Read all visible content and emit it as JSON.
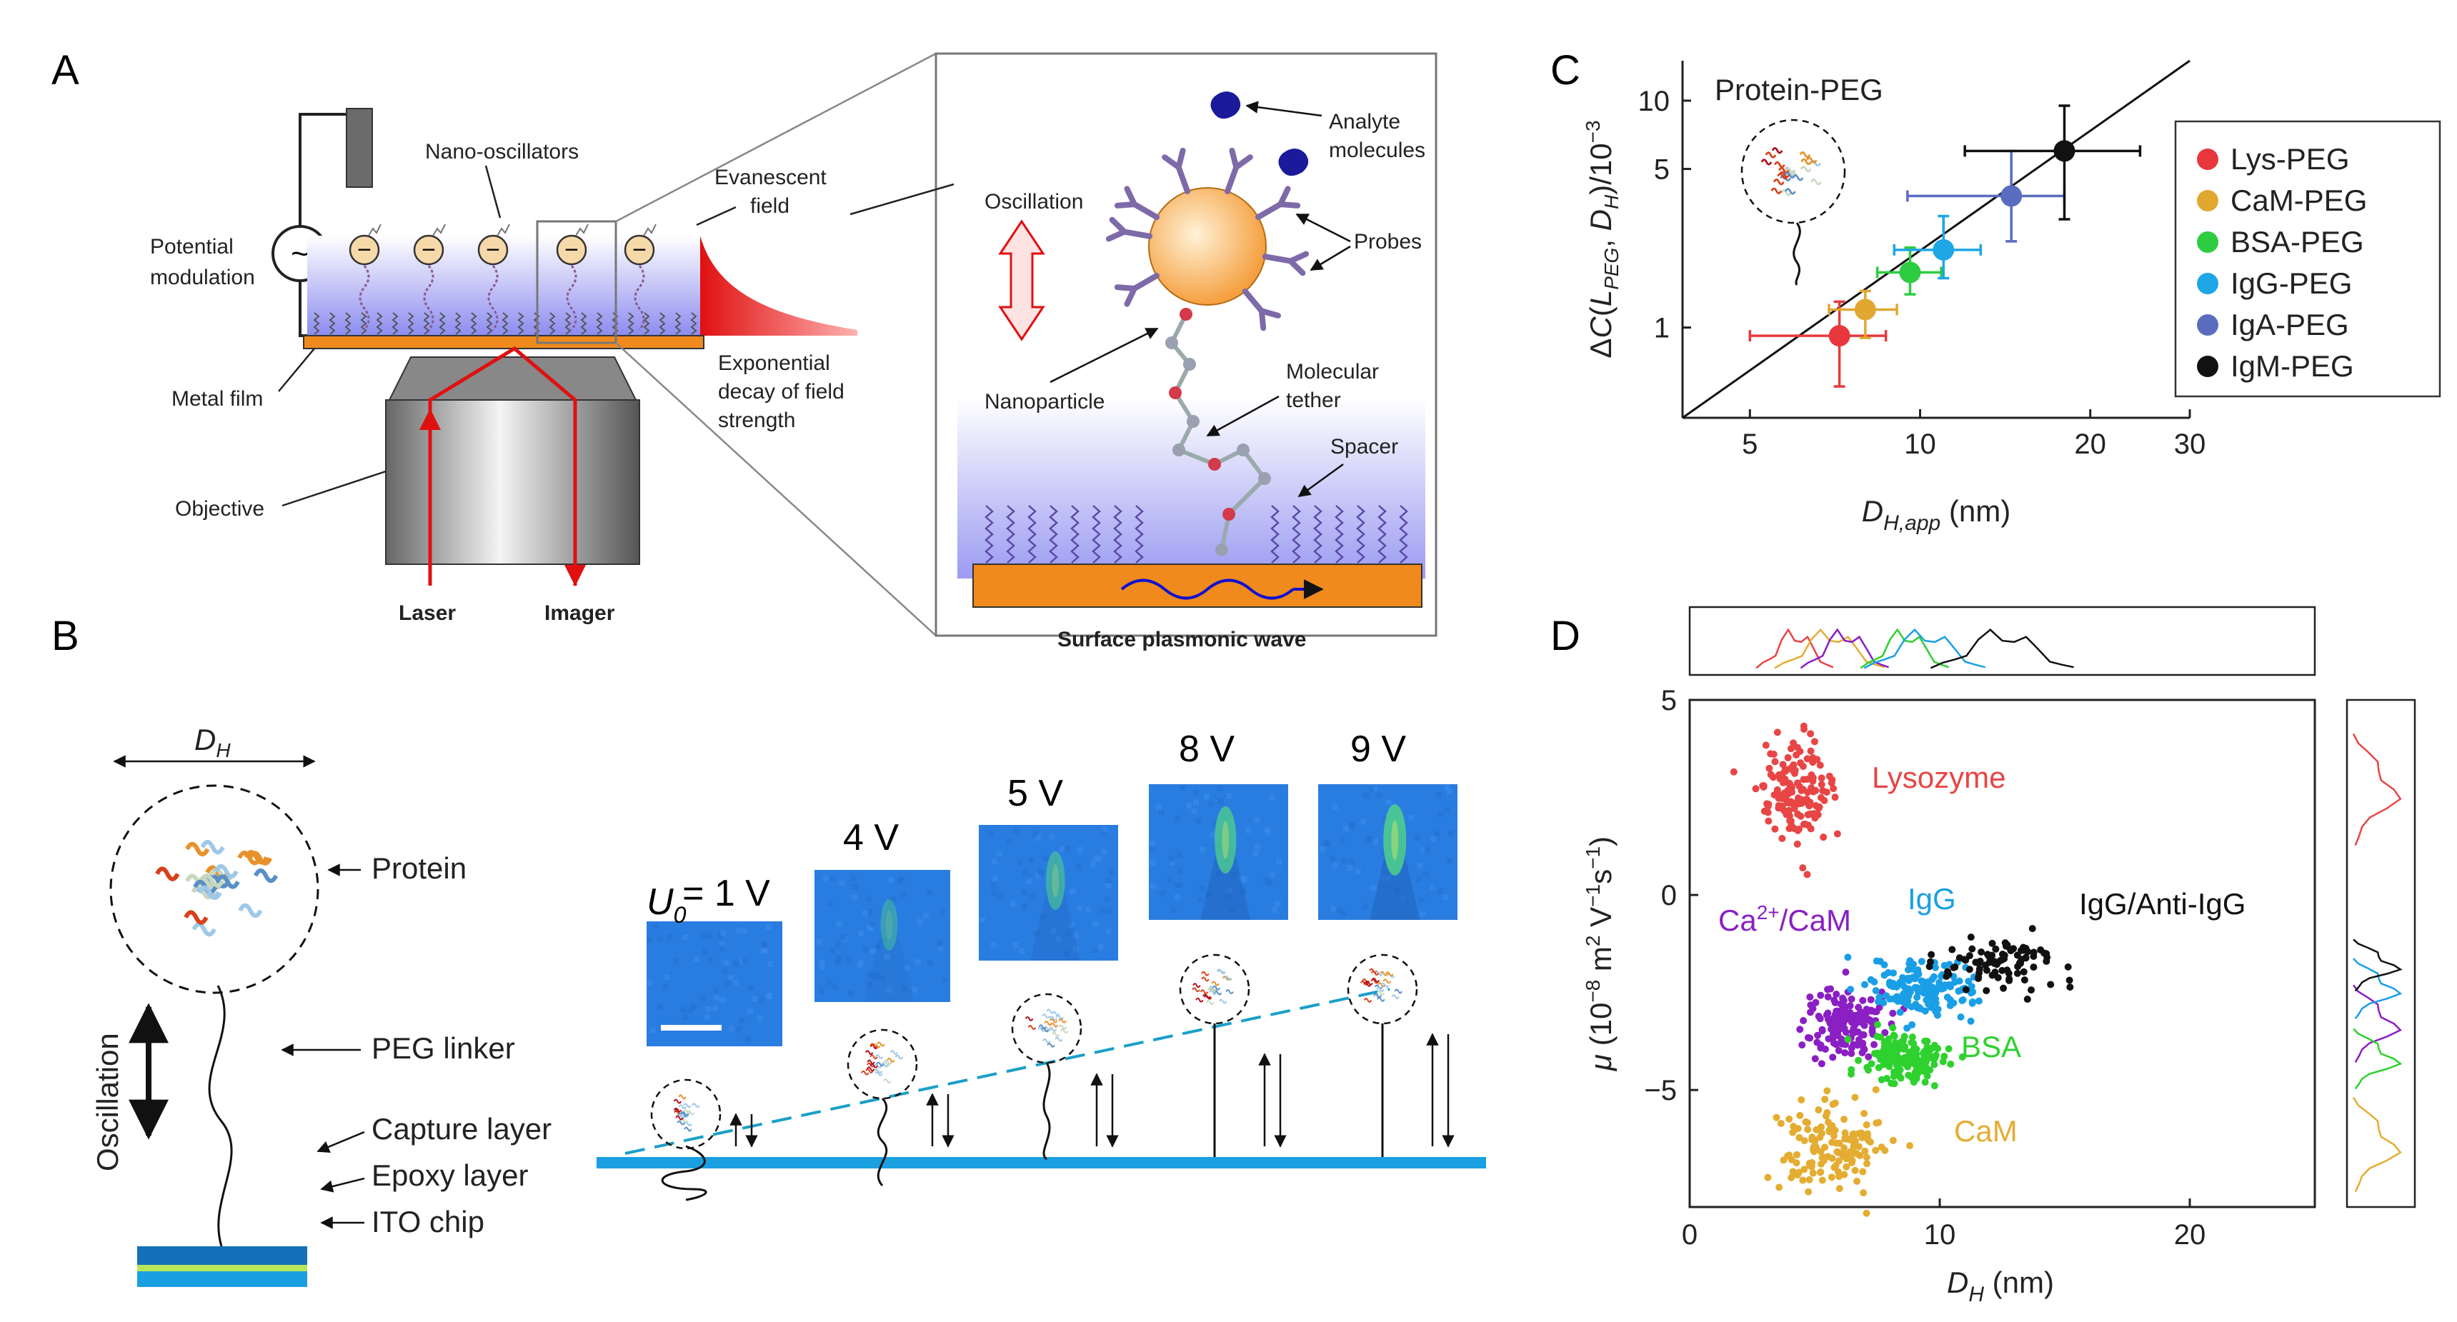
{
  "panels": {
    "a": "A",
    "b": "B",
    "c": "C",
    "d": "D"
  },
  "panel_a": {
    "left_labels": {
      "nano_oscillators": "Nano-oscillators",
      "potential": "Potential",
      "modulation": "modulation",
      "metal_film": "Metal film",
      "objective": "Objective",
      "laser": "Laser",
      "imager": "Imager",
      "evanescent_1": "Evanescent",
      "evanescent_2": "field",
      "decay_1": "Exponential",
      "decay_2": "decay of field",
      "decay_3": "strength"
    },
    "inset_labels": {
      "analyte_1": "Analyte",
      "analyte_2": "molecules",
      "oscillation": "Oscillation",
      "probes": "Probes",
      "nanoparticle": "Nanoparticle",
      "tether_1": "Molecular",
      "tether_2": "tether",
      "spacer": "Spacer",
      "surface_wave": "Surface plasmonic wave"
    },
    "charge_symbol": "−",
    "ac_symbol": "~"
  },
  "panel_b": {
    "dh_label": "D",
    "dh_sub": "H",
    "protein": "Protein",
    "peg_linker": "PEG linker",
    "oscillation": "Oscillation",
    "capture_layer": "Capture layer",
    "epoxy_layer": "Epoxy layer",
    "ito_chip": "ITO chip",
    "u0_label": "U",
    "u0_sub": "0",
    "voltages": [
      "= 1 V",
      "4 V",
      "5 V",
      "8 V",
      "9 V"
    ]
  },
  "chart_data": [
    {
      "type": "scatter",
      "title": "Protein-PEG",
      "xlabel": "D_H,app (nm)",
      "ylabel": "ΔC(L_PEG, D_H)/10^-3",
      "xscale": "log",
      "yscale": "log",
      "xlim": [
        3.8,
        30
      ],
      "ylim": [
        0.4,
        15
      ],
      "xticks": [
        5,
        10,
        20,
        30
      ],
      "yticks": [
        1,
        5,
        10
      ],
      "fit_line": {
        "from": [
          3.8,
          0.4
        ],
        "to": [
          30,
          15
        ]
      },
      "series": [
        {
          "name": "Lys-PEG",
          "color": "#e8383d",
          "x": 7.2,
          "y": 0.92,
          "xerr": [
            5.0,
            8.7
          ],
          "yerr": [
            0.55,
            1.3
          ]
        },
        {
          "name": "CaM-PEG",
          "color": "#e0a830",
          "x": 8.0,
          "y": 1.2,
          "xerr": [
            6.9,
            9.1
          ],
          "yerr": [
            0.9,
            1.45
          ]
        },
        {
          "name": "BSA-PEG",
          "color": "#2ecc40",
          "x": 9.6,
          "y": 1.75,
          "xerr": [
            8.4,
            10.9
          ],
          "yerr": [
            1.4,
            2.25
          ]
        },
        {
          "name": "IgG-PEG",
          "color": "#1ea6e6",
          "x": 11.0,
          "y": 2.2,
          "xerr": [
            9.0,
            12.8
          ],
          "yerr": [
            1.65,
            3.1
          ]
        },
        {
          "name": "IgA-PEG",
          "color": "#5a6cc0",
          "x": 14.5,
          "y": 3.8,
          "xerr": [
            9.5,
            18.0
          ],
          "yerr": [
            2.4,
            6.0
          ]
        },
        {
          "name": "IgM-PEG",
          "color": "#111111",
          "x": 18.0,
          "y": 6.0,
          "xerr": [
            12.0,
            24.5
          ],
          "yerr": [
            3.0,
            9.5
          ]
        }
      ]
    },
    {
      "type": "scatter",
      "xlabel": "D_H (nm)",
      "ylabel": "μ (10^-8 m^2 V^-1 s^-1)",
      "xlim": [
        0,
        25
      ],
      "ylim": [
        -8,
        5
      ],
      "xticks": [
        0,
        10,
        20
      ],
      "yticks": [
        -5,
        0,
        5
      ],
      "clusters": [
        {
          "name": "Lysozyme",
          "color": "#e84545",
          "cx": 4.2,
          "cy": 2.7,
          "sx": 0.7,
          "sy": 0.65,
          "n": 150,
          "label_text": "Lysozyme"
        },
        {
          "name": "CaM",
          "color": "#e4ad32",
          "cx": 5.6,
          "cy": -6.4,
          "sx": 1.0,
          "sy": 0.55,
          "n": 150,
          "label_text": "CaM"
        },
        {
          "name": "Ca2+/CaM",
          "color": "#8a1fc4",
          "cx": 6.2,
          "cy": -3.3,
          "sx": 0.8,
          "sy": 0.45,
          "n": 150,
          "label_text": "/CaM"
        },
        {
          "name": "BSA",
          "color": "#2ed12e",
          "cx": 8.6,
          "cy": -4.2,
          "sx": 0.8,
          "sy": 0.35,
          "n": 150,
          "label_text": "BSA"
        },
        {
          "name": "IgG",
          "color": "#1a9fe6",
          "cx": 9.4,
          "cy": -2.4,
          "sx": 1.1,
          "sy": 0.35,
          "n": 150,
          "label_text": "IgG"
        },
        {
          "name": "IgG/Anti-IgG",
          "color": "#111111",
          "cx": 12.5,
          "cy": -1.8,
          "sx": 1.3,
          "sy": 0.3,
          "n": 90,
          "label_text": "IgG/Anti-IgG"
        }
      ],
      "ca_prefix": "Ca",
      "ca_sup": "2+"
    }
  ],
  "colors": {
    "orange": "#f08a1c",
    "field": "#9a9af2",
    "red": "#e01010",
    "blue_layer": "#1aa0e0"
  }
}
